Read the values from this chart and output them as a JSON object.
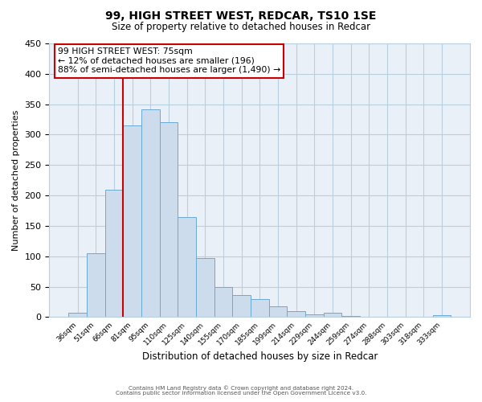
{
  "title": "99, HIGH STREET WEST, REDCAR, TS10 1SE",
  "subtitle": "Size of property relative to detached houses in Redcar",
  "xlabel": "Distribution of detached houses by size in Redcar",
  "ylabel": "Number of detached properties",
  "bar_color": "#cddcec",
  "bar_edge_color": "#6aaad4",
  "grid_color": "#b8cfe0",
  "background_color": "#eaf0f8",
  "categories": [
    "36sqm",
    "51sqm",
    "66sqm",
    "81sqm",
    "95sqm",
    "110sqm",
    "125sqm",
    "140sqm",
    "155sqm",
    "170sqm",
    "185sqm",
    "199sqm",
    "214sqm",
    "229sqm",
    "244sqm",
    "259sqm",
    "274sqm",
    "288sqm",
    "303sqm",
    "318sqm",
    "333sqm"
  ],
  "values": [
    7,
    105,
    210,
    315,
    342,
    320,
    165,
    97,
    50,
    36,
    30,
    18,
    10,
    5,
    7,
    2,
    0,
    0,
    0,
    0,
    3
  ],
  "ylim": [
    0,
    450
  ],
  "yticks": [
    0,
    50,
    100,
    150,
    200,
    250,
    300,
    350,
    400,
    450
  ],
  "vline_color": "#cc0000",
  "vline_position": 2.5,
  "annotation_lines": [
    "99 HIGH STREET WEST: 75sqm",
    "← 12% of detached houses are smaller (196)",
    "88% of semi-detached houses are larger (1,490) →"
  ],
  "annotation_box_edge_color": "#cc0000",
  "footer_line1": "Contains HM Land Registry data © Crown copyright and database right 2024.",
  "footer_line2": "Contains public sector information licensed under the Open Government Licence v3.0."
}
